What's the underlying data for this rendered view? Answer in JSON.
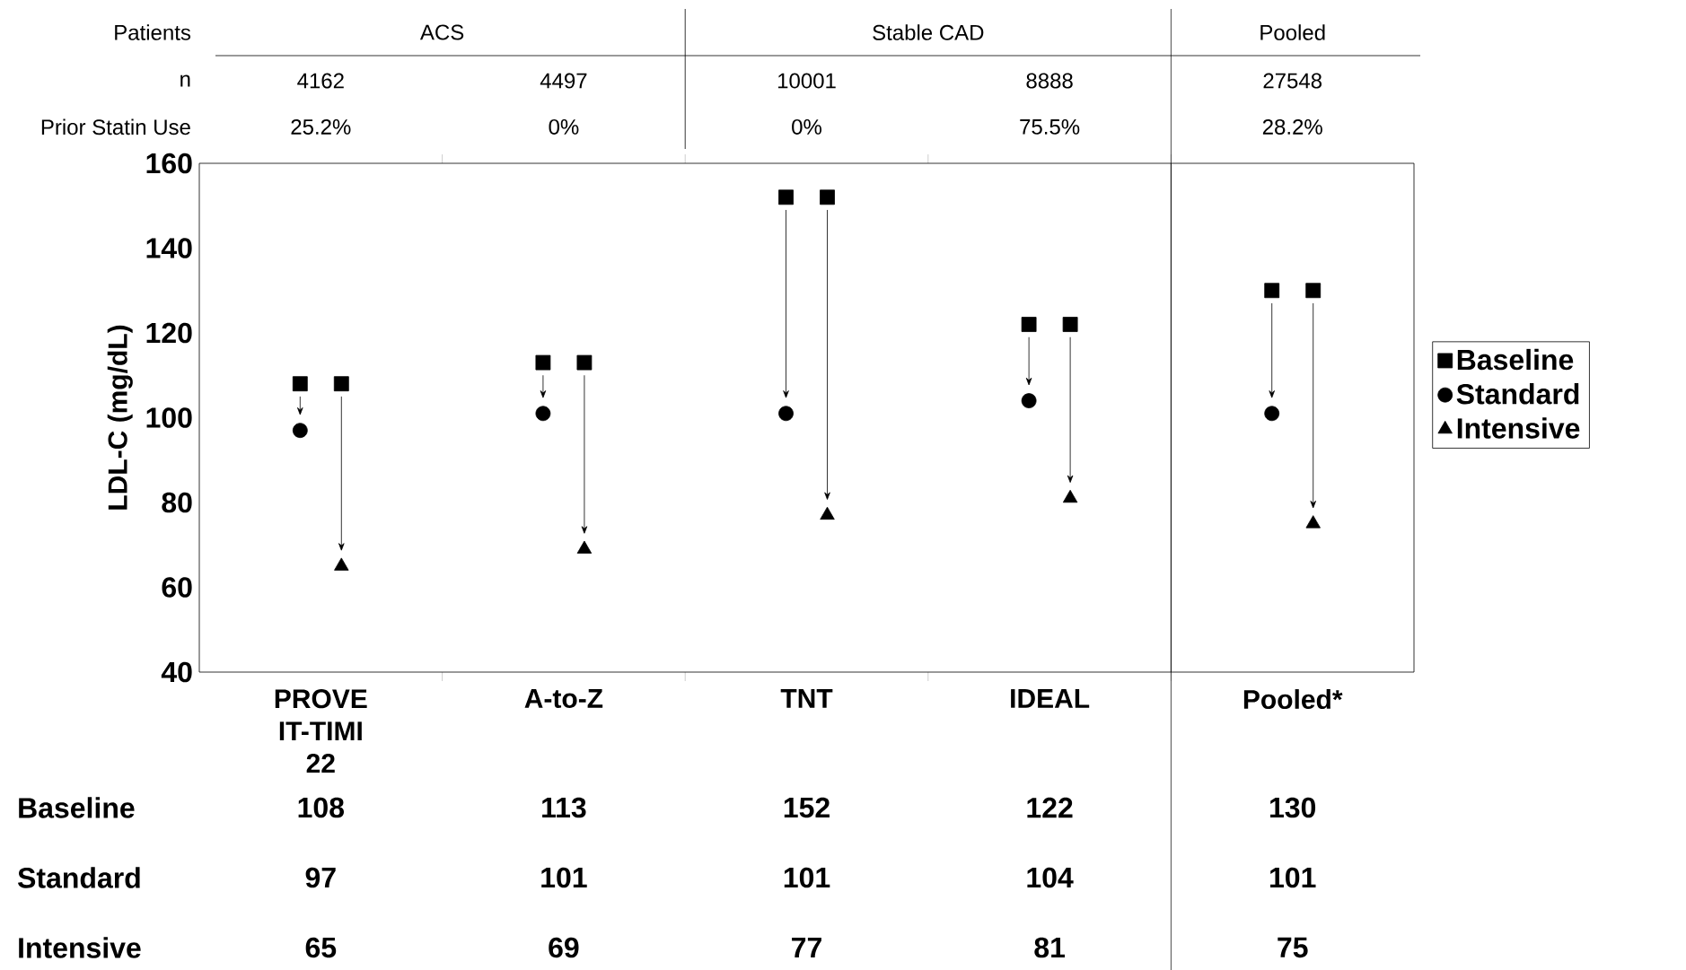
{
  "chart_data": {
    "type": "scatter",
    "ylabel": "LDL-C (mg/dL)",
    "categories": [
      "PROVE IT-TIMI 22",
      "A-to-Z",
      "TNT",
      "IDEAL",
      "Pooled*"
    ],
    "series": [
      {
        "name": "Baseline",
        "color": "#000000",
        "marker": "square",
        "values": [
          108,
          113,
          152,
          122,
          130
        ],
        "value_labels": [
          "108",
          "113",
          "152",
          "122",
          "130"
        ]
      },
      {
        "color": "#000000",
        "marker": "square",
        "values": [
          108,
          113,
          152,
          122,
          130
        ],
        "value_labels": [
          null,
          null,
          null,
          null,
          null
        ]
      },
      {
        "name": "Standard",
        "color": "#000000",
        "marker": "circle",
        "values": [
          97,
          101,
          101,
          104,
          101
        ],
        "value_labels": [
          "97",
          "101",
          "101",
          "104",
          "101"
        ]
      },
      {
        "name": "Intensive",
        "color": "#000000",
        "marker": "triangle",
        "values": [
          65,
          69,
          77,
          81,
          75
        ],
        "value_labels": [
          "65",
          "69",
          "77",
          "81",
          "75"
        ]
      }
    ],
    "ylim": [
      40,
      160
    ],
    "yticks": [
      40,
      60,
      80,
      100,
      120,
      140,
      160
    ],
    "legend": "right",
    "annotations": [
      "Patients",
      "ACS",
      "Stable CAD",
      "Pooled",
      "n",
      "4162",
      "4497",
      "10001",
      "8888",
      "27548",
      "Prior Statin Use",
      "25.2%",
      "0%",
      "0%",
      "75.5%",
      "28.2%"
    ]
  }
}
